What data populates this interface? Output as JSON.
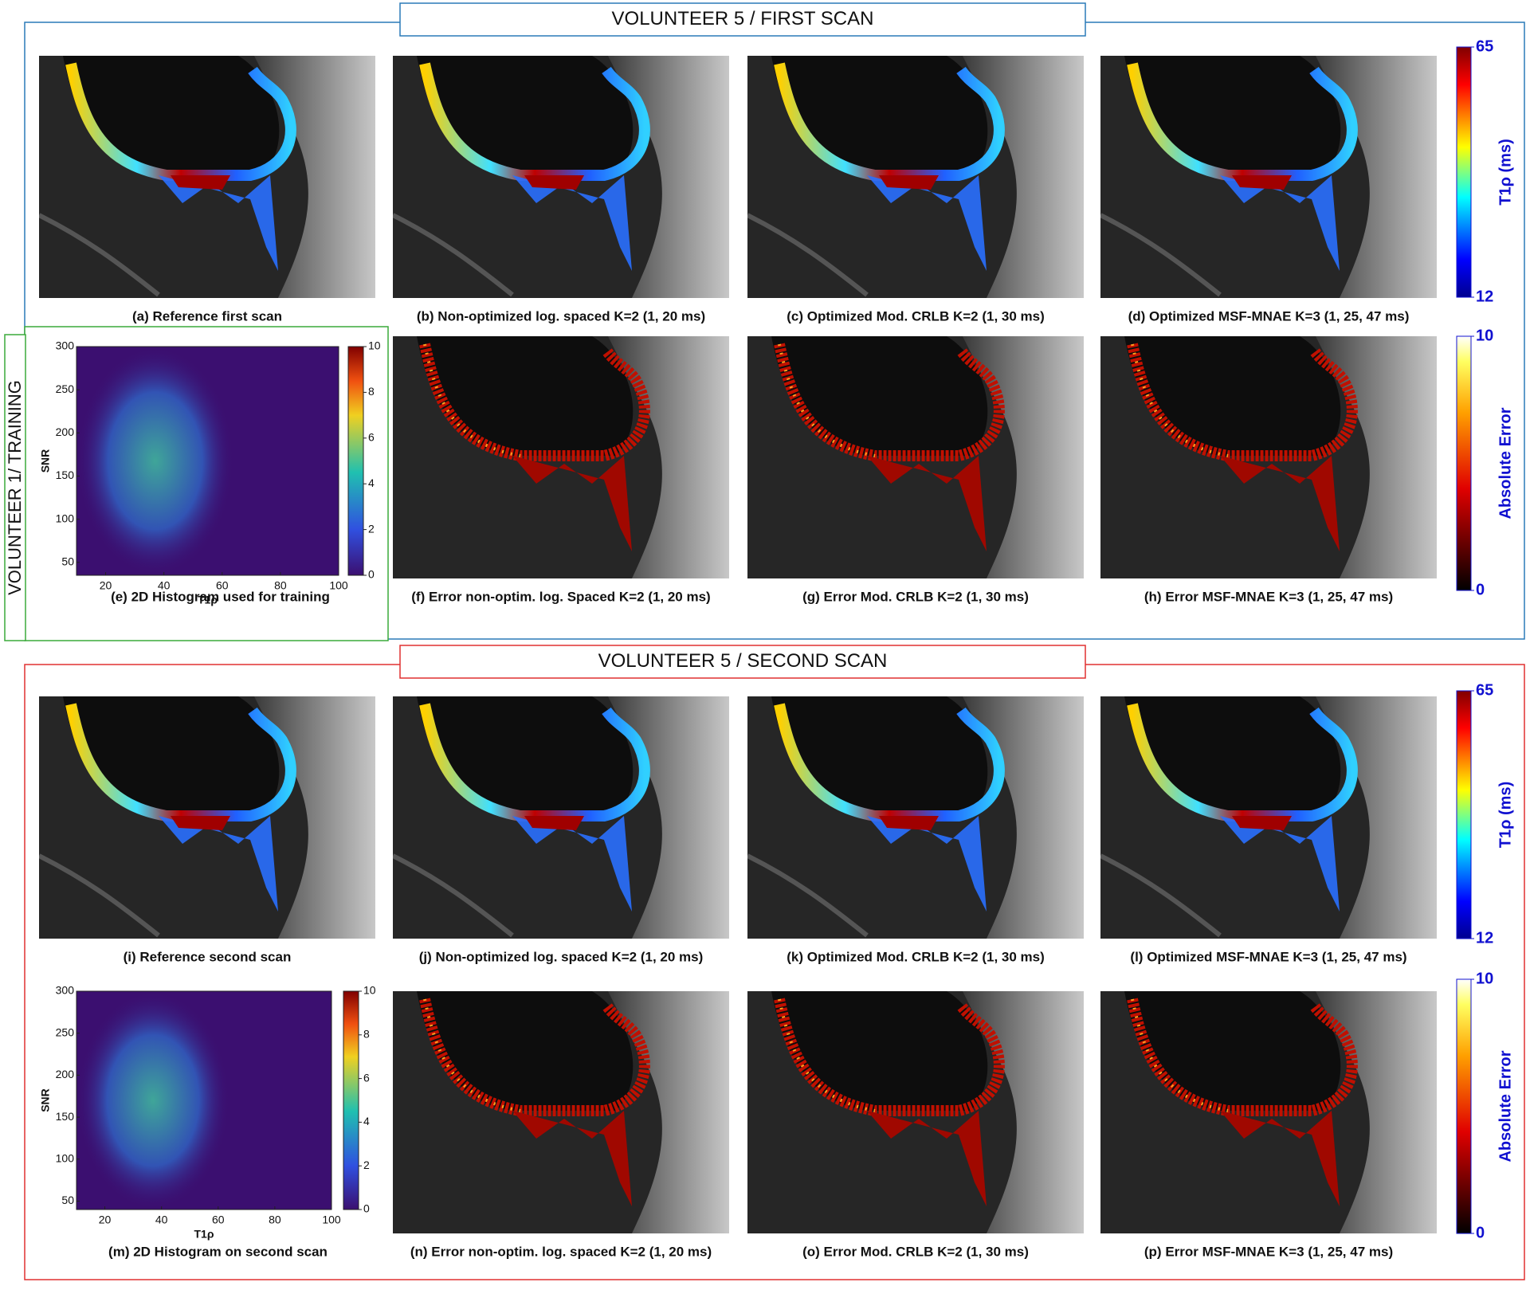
{
  "training_label": "VOLUNTEER 1/ TRAINING",
  "sections": [
    {
      "title": "VOLUNTEER 5 / FIRST SCAN",
      "map_captions": [
        "(a) Reference first scan",
        "(b) Non-optimized log. spaced K=2 (1, 20 ms)",
        "(c) Optimized Mod. CRLB K=2 (1, 30 ms)",
        "(d) Optimized MSF-MNAE K=3  (1, 25, 47 ms)"
      ],
      "error_captions": [
        "(f) Error non-optim. log. Spaced K=2 (1, 20 ms)",
        "(g) Error Mod. CRLB K=2 (1, 30 ms)",
        "(h) Error MSF-MNAE K=3 (1, 25, 47 ms)"
      ],
      "map_colorbar": {
        "label": "T1ρ (ms)",
        "lim": [
          12,
          65
        ],
        "ticks": [
          12,
          65
        ]
      },
      "error_colorbar": {
        "label": "Absolute Error",
        "lim": [
          0,
          10
        ],
        "ticks": [
          0,
          10
        ]
      },
      "histogram": {
        "caption": "(e) 2D Histogram used for training",
        "xlabel": "T1ρ",
        "ylabel": "SNR",
        "xlim": [
          10,
          100
        ],
        "xticks": [
          20,
          40,
          60,
          80,
          100
        ],
        "ylim": [
          35,
          300
        ],
        "yticks": [
          50,
          100,
          150,
          200,
          250,
          300
        ],
        "clim": [
          0,
          10
        ],
        "cticks": [
          0,
          2,
          4,
          6,
          8,
          10
        ]
      }
    },
    {
      "title": "VOLUNTEER 5 / SECOND SCAN",
      "map_captions": [
        "(i) Reference second scan",
        "(j) Non-optimized log. spaced K=2 (1, 20 ms)",
        "(k) Optimized Mod. CRLB K=2 (1, 30 ms)",
        "(l) Optimized MSF-MNAE K=3 (1, 25, 47 ms)"
      ],
      "error_captions": [
        "(n) Error non-optim. log. spaced K=2 (1, 20 ms)",
        "(o) Error Mod. CRLB K=2 (1, 30 ms)",
        "(p) Error MSF-MNAE K=3 (1, 25, 47 ms)"
      ],
      "map_colorbar": {
        "label": "T1ρ (ms)",
        "lim": [
          12,
          65
        ],
        "ticks": [
          12,
          65
        ]
      },
      "error_colorbar": {
        "label": "Absolute Error",
        "lim": [
          0,
          10
        ],
        "ticks": [
          0,
          10
        ]
      },
      "histogram": {
        "caption": "(m) 2D Histogram on second scan",
        "xlabel": "T1ρ",
        "ylabel": "SNR",
        "xlim": [
          10,
          100
        ],
        "xticks": [
          20,
          40,
          60,
          80,
          100
        ],
        "ylim": [
          40,
          300
        ],
        "yticks": [
          50,
          100,
          150,
          200,
          250,
          300
        ],
        "clim": [
          0,
          10
        ],
        "cticks": [
          0,
          2,
          4,
          6,
          8,
          10
        ]
      }
    }
  ]
}
